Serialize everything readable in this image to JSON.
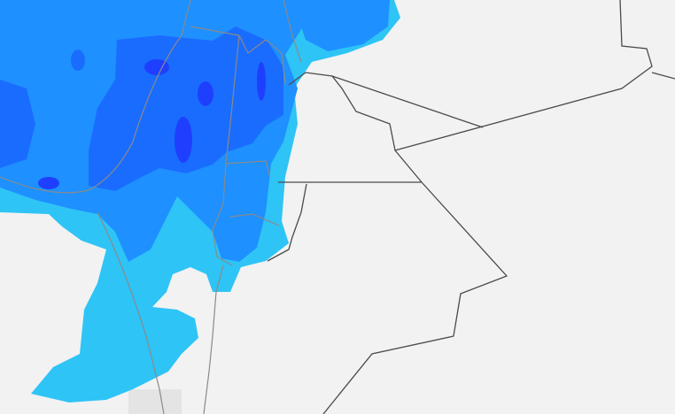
{
  "map": {
    "background_color": "#f2f2f2",
    "precipitation_colors": {
      "light": "#2ec4f6",
      "moderate": "#1e90ff",
      "heavy": "#1a6cff",
      "very_heavy": "#1f3fff"
    },
    "border_color": "#4a4a4a",
    "subregion_border_color": "#8a8a8a"
  }
}
